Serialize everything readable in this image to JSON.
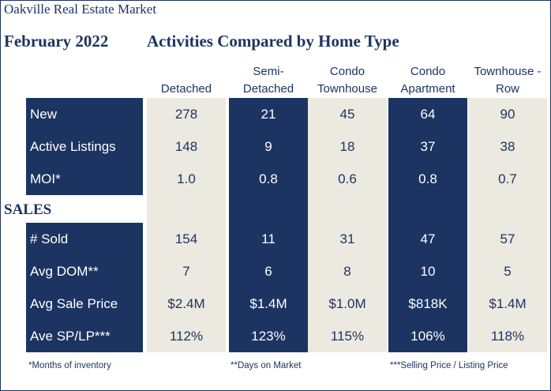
{
  "title": "Oakville Real Estate Market",
  "period": "February 2022",
  "heading": "Activities Compared by Home Type",
  "sales_label": "SALES",
  "columns": [
    {
      "line1": "Detached",
      "line2": ""
    },
    {
      "line1": "Semi-",
      "line2": "Detached"
    },
    {
      "line1": "Condo",
      "line2": "Townhouse"
    },
    {
      "line1": "Condo",
      "line2": "Apartment"
    },
    {
      "line1": "Townhouse -",
      "line2": "Row"
    }
  ],
  "rows": [
    {
      "label": "New",
      "values": [
        "278",
        "21",
        "45",
        "64",
        "90"
      ]
    },
    {
      "label": "Active Listings",
      "values": [
        "148",
        "9",
        "18",
        "37",
        "38"
      ]
    },
    {
      "label": "MOI*",
      "values": [
        "1.0",
        "0.8",
        "0.6",
        "0.8",
        "0.7"
      ]
    },
    {
      "label": "# Sold",
      "values": [
        "154",
        "11",
        "31",
        "47",
        "57"
      ]
    },
    {
      "label": "Avg DOM**",
      "values": [
        "7",
        "6",
        "8",
        "10",
        "5"
      ]
    },
    {
      "label": "Avg Sale Price",
      "values": [
        "$2.4M",
        "$1.4M",
        "$1.0M",
        "$818K",
        "$1.4M"
      ]
    },
    {
      "label": "Ave SP/LP***",
      "values": [
        "112%",
        "123%",
        "115%",
        "106%",
        "118%"
      ]
    }
  ],
  "footnotes": [
    "*Months of inventory",
    "**Days on Market",
    "***Selling Price / Listing Price"
  ],
  "colors": {
    "navy": "#1c3461",
    "beige": "#ece9e1"
  }
}
